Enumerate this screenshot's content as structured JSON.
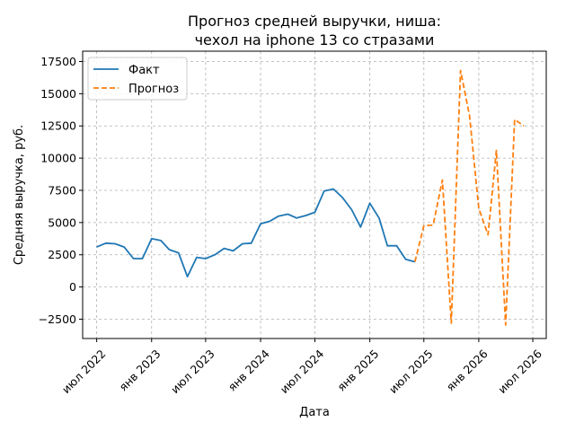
{
  "chart_data": {
    "type": "line",
    "title_line1": "Прогноз средней выручки, ниша:",
    "title_line2": "чехол на iphone 13 со стразами",
    "xlabel": "Дата",
    "ylabel": "Средняя выручка, руб.",
    "x_ticks": [
      {
        "label": "июл 2022",
        "date": "2022-07-01"
      },
      {
        "label": "янв 2023",
        "date": "2023-01-01"
      },
      {
        "label": "июл 2023",
        "date": "2023-07-01"
      },
      {
        "label": "янв 2024",
        "date": "2024-01-01"
      },
      {
        "label": "июл 2024",
        "date": "2024-07-01"
      },
      {
        "label": "янв 2025",
        "date": "2025-01-01"
      },
      {
        "label": "июл 2025",
        "date": "2025-07-01"
      },
      {
        "label": "янв 2026",
        "date": "2026-01-01"
      },
      {
        "label": "июл 2026",
        "date": "2026-07-01"
      }
    ],
    "y_ticks": [
      -2500,
      0,
      2500,
      5000,
      7500,
      10000,
      12500,
      15000,
      17500
    ],
    "xlim": [
      "2022-05-15",
      "2026-08-15"
    ],
    "ylim": [
      -4000,
      18300
    ],
    "grid": true,
    "legend_position": "top-left",
    "series": [
      {
        "name": "Факт",
        "color": "#1f77b4",
        "dash": "solid",
        "dates": [
          "2022-07-01",
          "2022-08-01",
          "2022-09-01",
          "2022-10-01",
          "2022-11-01",
          "2022-12-01",
          "2023-01-01",
          "2023-02-01",
          "2023-03-01",
          "2023-04-01",
          "2023-05-01",
          "2023-06-01",
          "2023-07-01",
          "2023-08-01",
          "2023-09-01",
          "2023-10-01",
          "2023-11-01",
          "2023-12-01",
          "2024-01-01",
          "2024-02-01",
          "2024-03-01",
          "2024-04-01",
          "2024-05-01",
          "2024-06-01",
          "2024-07-01",
          "2024-08-01",
          "2024-09-01",
          "2024-10-01",
          "2024-11-01",
          "2024-12-01",
          "2025-01-01",
          "2025-02-01",
          "2025-03-01",
          "2025-04-01",
          "2025-05-01",
          "2025-06-01"
        ],
        "values": [
          3100,
          3400,
          3350,
          3100,
          2200,
          2200,
          3750,
          3600,
          2900,
          2650,
          800,
          2300,
          2200,
          2500,
          3000,
          2800,
          3350,
          3400,
          4900,
          5100,
          5500,
          5650,
          5350,
          5550,
          5800,
          7450,
          7600,
          6950,
          6000,
          4650,
          6500,
          5350,
          3200,
          3200,
          2150,
          1950
        ]
      },
      {
        "name": "Прогноз",
        "color": "#ff7f0e",
        "dash": "dashed",
        "dates": [
          "2025-06-01",
          "2025-07-01",
          "2025-08-01",
          "2025-09-01",
          "2025-10-01",
          "2025-11-01",
          "2025-12-01",
          "2026-01-01",
          "2026-02-01",
          "2026-03-01",
          "2026-04-01",
          "2026-05-01",
          "2026-06-01"
        ],
        "values": [
          1950,
          4750,
          4800,
          8300,
          -2800,
          16800,
          13300,
          6100,
          4050,
          10600,
          -2950,
          13000,
          12500
        ]
      }
    ]
  }
}
